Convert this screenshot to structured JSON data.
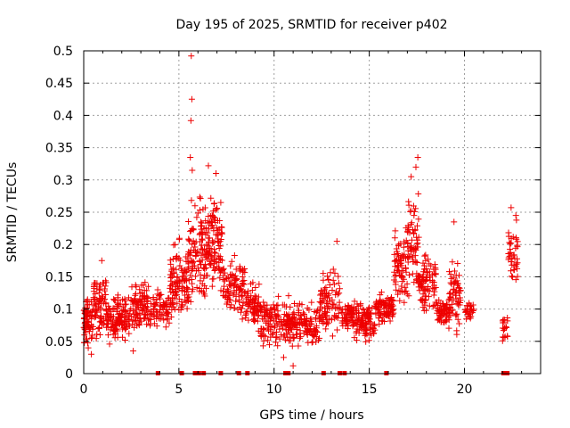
{
  "chart_data": {
    "type": "scatter",
    "title": "Day 195 of 2025, SRMTID for receiver p402",
    "xlabel": "GPS time / hours",
    "ylabel": "SRMTID / TECUs",
    "xlim": [
      0,
      24
    ],
    "ylim": [
      0,
      0.5
    ],
    "x_ticks": [
      0,
      5,
      10,
      15,
      20
    ],
    "x_tick_labels": [
      "0",
      "5",
      "10",
      "15",
      "20"
    ],
    "y_ticks": [
      0,
      0.05,
      0.1,
      0.15,
      0.2,
      0.25,
      0.3,
      0.35,
      0.4,
      0.45,
      0.5
    ],
    "y_tick_labels": [
      "0",
      "0.05",
      "0.1",
      "0.15",
      "0.2",
      "0.25",
      "0.3",
      "0.35",
      "0.4",
      "0.45",
      "0.5"
    ],
    "grid": true,
    "marker": "plus",
    "colors": {
      "points": "#ee0000",
      "grid": "#a0a0a0"
    },
    "segments": [
      {
        "x_start": 0.0,
        "x_end": 0.5,
        "y_min": 0.03,
        "y_max": 0.13,
        "count": 70
      },
      {
        "x_start": 0.5,
        "x_end": 1.2,
        "y_min": 0.05,
        "y_max": 0.17,
        "count": 80
      },
      {
        "x_start": 1.2,
        "x_end": 2.5,
        "y_min": 0.04,
        "y_max": 0.13,
        "count": 130
      },
      {
        "x_start": 2.5,
        "x_end": 3.5,
        "y_min": 0.05,
        "y_max": 0.16,
        "count": 90
      },
      {
        "x_start": 3.5,
        "x_end": 4.5,
        "y_min": 0.06,
        "y_max": 0.14,
        "count": 70
      },
      {
        "x_start": 4.5,
        "x_end": 5.5,
        "y_min": 0.06,
        "y_max": 0.22,
        "count": 110
      },
      {
        "x_start": 5.5,
        "x_end": 6.5,
        "y_min": 0.08,
        "y_max": 0.3,
        "count": 120
      },
      {
        "x_start": 6.5,
        "x_end": 7.3,
        "y_min": 0.1,
        "y_max": 0.3,
        "count": 100
      },
      {
        "x_start": 7.3,
        "x_end": 8.5,
        "y_min": 0.07,
        "y_max": 0.2,
        "count": 100
      },
      {
        "x_start": 8.5,
        "x_end": 9.3,
        "y_min": 0.06,
        "y_max": 0.15,
        "count": 70
      },
      {
        "x_start": 9.3,
        "x_end": 10.8,
        "y_min": 0.03,
        "y_max": 0.13,
        "count": 130
      },
      {
        "x_start": 10.8,
        "x_end": 12.4,
        "y_min": 0.03,
        "y_max": 0.12,
        "count": 130
      },
      {
        "x_start": 12.4,
        "x_end": 13.5,
        "y_min": 0.05,
        "y_max": 0.18,
        "count": 90
      },
      {
        "x_start": 13.5,
        "x_end": 14.2,
        "y_min": 0.06,
        "y_max": 0.12,
        "count": 60
      },
      {
        "x_start": 14.2,
        "x_end": 15.3,
        "y_min": 0.04,
        "y_max": 0.12,
        "count": 100
      },
      {
        "x_start": 15.3,
        "x_end": 16.3,
        "y_min": 0.07,
        "y_max": 0.13,
        "count": 90
      },
      {
        "x_start": 16.3,
        "x_end": 17.0,
        "y_min": 0.08,
        "y_max": 0.24,
        "count": 70
      },
      {
        "x_start": 17.0,
        "x_end": 17.6,
        "y_min": 0.1,
        "y_max": 0.3,
        "count": 70
      },
      {
        "x_start": 17.6,
        "x_end": 18.5,
        "y_min": 0.08,
        "y_max": 0.2,
        "count": 90
      },
      {
        "x_start": 18.5,
        "x_end": 19.2,
        "y_min": 0.06,
        "y_max": 0.13,
        "count": 60
      },
      {
        "x_start": 19.2,
        "x_end": 19.8,
        "y_min": 0.05,
        "y_max": 0.2,
        "count": 60
      },
      {
        "x_start": 20.0,
        "x_end": 20.5,
        "y_min": 0.07,
        "y_max": 0.12,
        "count": 30
      },
      {
        "x_start": 22.0,
        "x_end": 22.3,
        "y_min": 0.04,
        "y_max": 0.1,
        "count": 20
      },
      {
        "x_start": 22.3,
        "x_end": 22.8,
        "y_min": 0.12,
        "y_max": 0.25,
        "count": 40
      }
    ],
    "outliers": [
      {
        "x": 5.65,
        "y": 0.492
      },
      {
        "x": 5.68,
        "y": 0.425
      },
      {
        "x": 5.63,
        "y": 0.392
      },
      {
        "x": 5.6,
        "y": 0.335
      },
      {
        "x": 5.7,
        "y": 0.315
      },
      {
        "x": 6.55,
        "y": 0.322
      },
      {
        "x": 6.95,
        "y": 0.31
      },
      {
        "x": 17.55,
        "y": 0.335
      },
      {
        "x": 17.45,
        "y": 0.32
      },
      {
        "x": 17.2,
        "y": 0.305
      },
      {
        "x": 22.45,
        "y": 0.257
      },
      {
        "x": 22.7,
        "y": 0.245
      },
      {
        "x": 19.45,
        "y": 0.235
      },
      {
        "x": 13.3,
        "y": 0.205
      },
      {
        "x": 7.2,
        "y": 0.265
      },
      {
        "x": 0.95,
        "y": 0.175
      },
      {
        "x": 4.8,
        "y": 0.2
      },
      {
        "x": 11.0,
        "y": 0.012
      },
      {
        "x": 10.5,
        "y": 0.025
      },
      {
        "x": 0.4,
        "y": 0.03
      },
      {
        "x": 2.6,
        "y": 0.035
      }
    ],
    "zero_markers_x": [
      3.9,
      5.15,
      5.85,
      6.05,
      6.3,
      7.2,
      8.15,
      8.6,
      10.6,
      10.75,
      12.6,
      13.45,
      13.7,
      15.9,
      22.05,
      22.25
    ]
  }
}
